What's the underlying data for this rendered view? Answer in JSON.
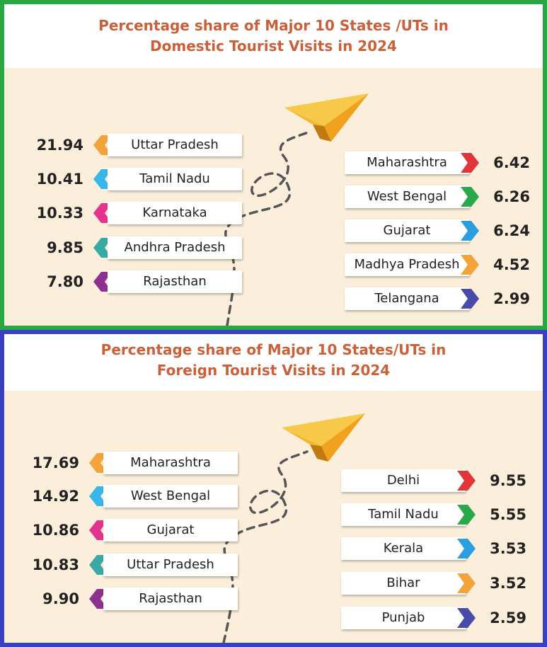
{
  "chart_data": [
    {
      "type": "table",
      "title_lines": [
        "Percentage share of Major 10 States /UTs in",
        "Domestic Tourist Visits in 2024"
      ],
      "left_items": [
        {
          "label": "Uttar Pradesh",
          "value": "21.94",
          "color": "#f2a43a"
        },
        {
          "label": "Tamil Nadu",
          "value": "10.41",
          "color": "#35b8e8"
        },
        {
          "label": "Karnataka",
          "value": "10.33",
          "color": "#e5328f"
        },
        {
          "label": "Andhra Pradesh",
          "value": "9.85",
          "color": "#3aa8a4"
        },
        {
          "label": "Rajasthan",
          "value": "7.80",
          "color": "#8e2f92"
        }
      ],
      "right_items": [
        {
          "label": "Maharashtra",
          "value": "6.42",
          "color": "#e2353a"
        },
        {
          "label": "West Bengal",
          "value": "6.26",
          "color": "#2aa84a"
        },
        {
          "label": "Gujarat",
          "value": "6.24",
          "color": "#2b9ee0"
        },
        {
          "label": "Madhya Pradesh",
          "value": "4.52",
          "color": "#f2a43a"
        },
        {
          "label": "Telangana",
          "value": "2.99",
          "color": "#4a4aa8"
        }
      ]
    },
    {
      "type": "table",
      "title_lines": [
        "Percentage share of Major 10 States/UTs in",
        "Foreign Tourist Visits in 2024"
      ],
      "left_items": [
        {
          "label": "Maharashtra",
          "value": "17.69",
          "color": "#f2a43a"
        },
        {
          "label": "West Bengal",
          "value": "14.92",
          "color": "#35b8e8"
        },
        {
          "label": "Gujarat",
          "value": "10.86",
          "color": "#e5328f"
        },
        {
          "label": "Uttar Pradesh",
          "value": "10.83",
          "color": "#3aa8a4"
        },
        {
          "label": "Rajasthan",
          "value": "9.90",
          "color": "#8e2f92"
        }
      ],
      "right_items": [
        {
          "label": "Delhi",
          "value": "9.55",
          "color": "#e2353a"
        },
        {
          "label": "Tamil Nadu",
          "value": "5.55",
          "color": "#2aa84a"
        },
        {
          "label": "Kerala",
          "value": "3.53",
          "color": "#2b9ee0"
        },
        {
          "label": "Bihar",
          "value": "3.52",
          "color": "#f2a43a"
        },
        {
          "label": "Punjab",
          "value": "2.59",
          "color": "#4a4aa8"
        }
      ]
    }
  ]
}
